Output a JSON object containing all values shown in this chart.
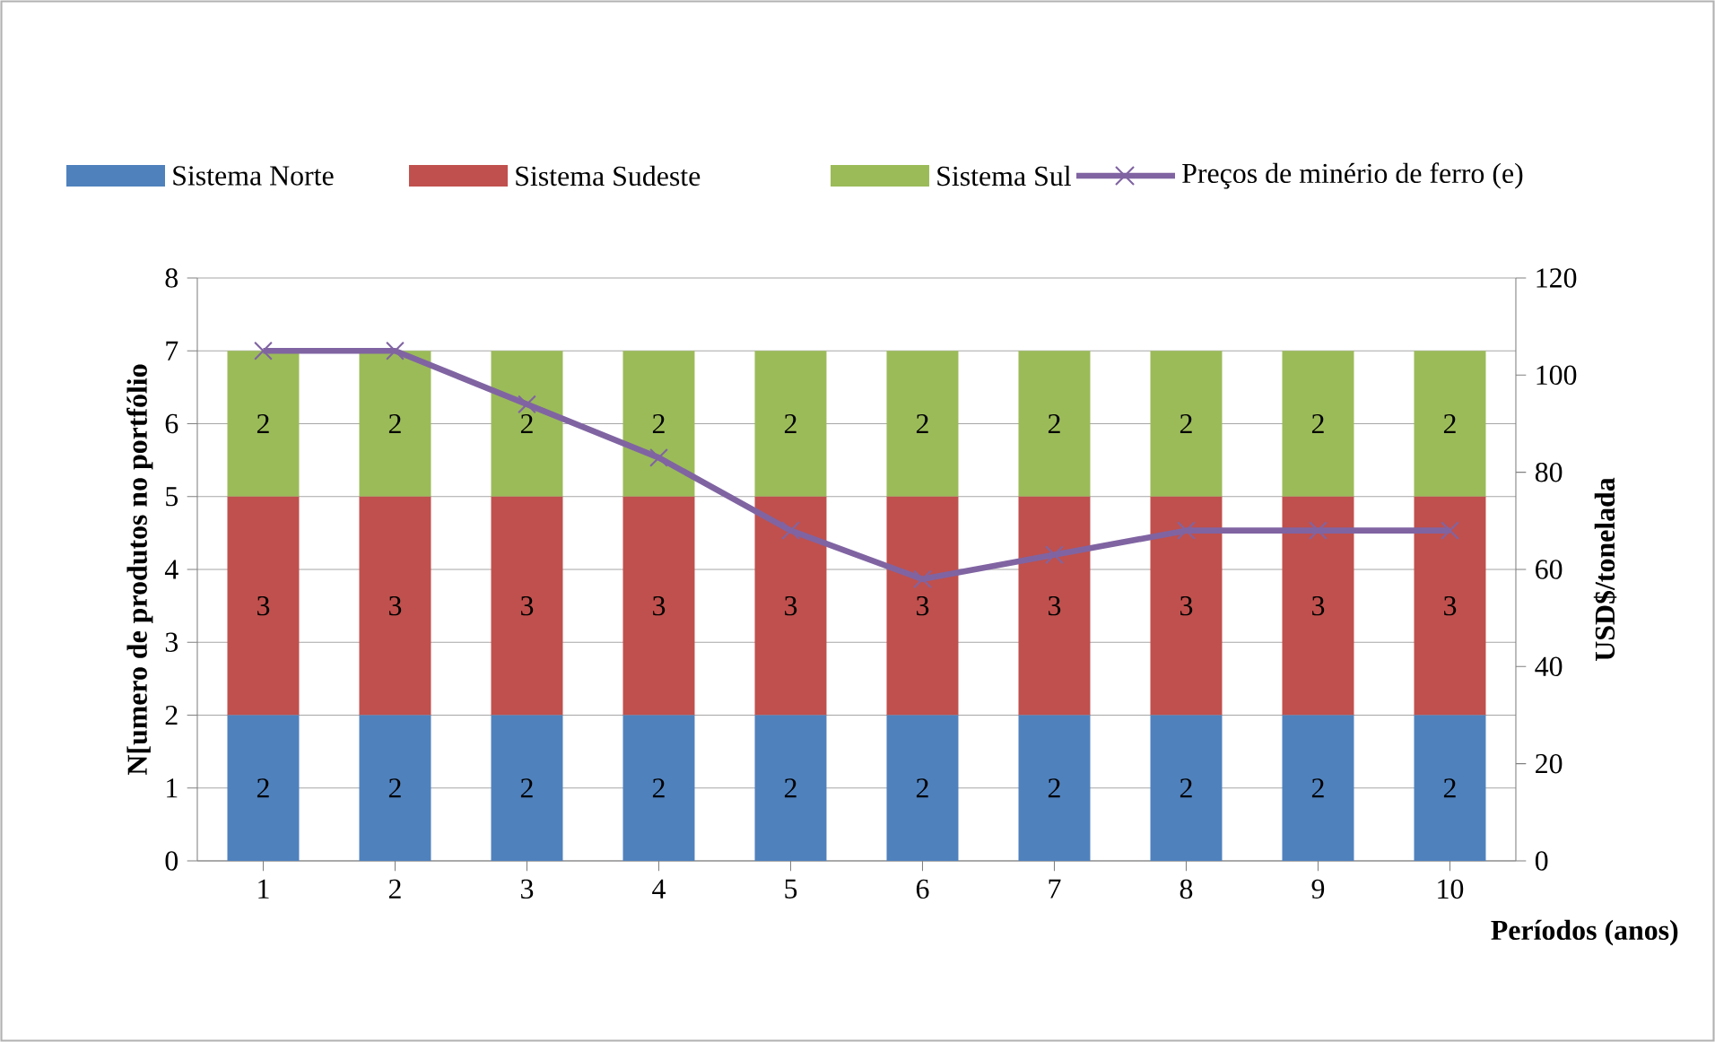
{
  "chart_data": {
    "type": "bar",
    "stacked": true,
    "xlabel": "Períodos (anos)",
    "ylabel": "N[umero de produtos no portfólio",
    "y2label": "USD$/tonelada",
    "categories": [
      "1",
      "2",
      "3",
      "4",
      "5",
      "6",
      "7",
      "8",
      "9",
      "10"
    ],
    "series": [
      {
        "name": "Sistema Norte",
        "color": "#4f81bd",
        "values": [
          2,
          2,
          2,
          2,
          2,
          2,
          2,
          2,
          2,
          2
        ],
        "value_labels": [
          "2",
          "2",
          "2",
          "2",
          "2",
          "2",
          "2",
          "2",
          "2",
          "2"
        ]
      },
      {
        "name": "Sistema Sudeste",
        "color": "#c0504d",
        "values": [
          3,
          3,
          3,
          3,
          3,
          3,
          3,
          3,
          3,
          3
        ],
        "value_labels": [
          "3",
          "3",
          "3",
          "3",
          "3",
          "3",
          "3",
          "3",
          "3",
          "3"
        ]
      },
      {
        "name": "Sistema Sul",
        "color": "#9bbb59",
        "values": [
          2,
          2,
          2,
          2,
          2,
          2,
          2,
          2,
          2,
          2
        ],
        "value_labels": [
          "2",
          "2",
          "2",
          "2",
          "2",
          "2",
          "2",
          "2",
          "2",
          "2"
        ]
      },
      {
        "name": "Preços de minério de ferro (e)",
        "type": "line",
        "axis": "y2",
        "color": "#8064a2",
        "marker": "cross",
        "values": [
          105,
          105,
          94,
          83,
          68,
          58,
          63,
          68,
          68,
          68
        ]
      }
    ],
    "ylim": [
      0,
      8
    ],
    "yticks": [
      0,
      1,
      2,
      3,
      4,
      5,
      6,
      7,
      8
    ],
    "y2lim": [
      0,
      120
    ],
    "y2ticks": [
      0,
      20,
      40,
      60,
      80,
      100,
      120
    ],
    "grid": "y",
    "legend": "top"
  }
}
